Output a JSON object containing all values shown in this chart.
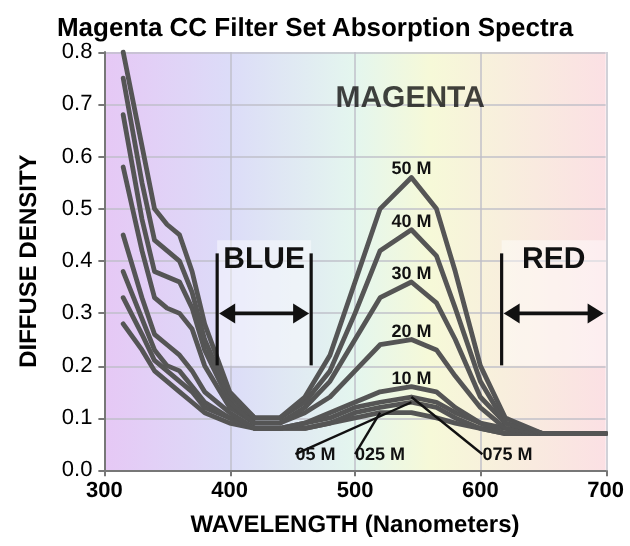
{
  "chart_data": {
    "type": "line",
    "title": "Magenta CC Filter Set Absorption Spectra",
    "xlabel": "WAVELENGTH (Nanometers)",
    "ylabel": "DIFFUSE DENSITY",
    "x": [
      315,
      330,
      340,
      350,
      360,
      370,
      380,
      400,
      420,
      440,
      460,
      480,
      500,
      520,
      545,
      565,
      580,
      600,
      620,
      650,
      700
    ],
    "series": [
      {
        "name": "50 M",
        "color": "#555555",
        "values": [
          0.8,
          0.62,
          0.5,
          0.47,
          0.45,
          0.38,
          0.28,
          0.15,
          0.1,
          0.1,
          0.14,
          0.22,
          0.36,
          0.5,
          0.56,
          0.5,
          0.38,
          0.2,
          0.1,
          0.07,
          0.07
        ]
      },
      {
        "name": "40 M",
        "color": "#555555",
        "values": [
          0.75,
          0.55,
          0.44,
          0.42,
          0.4,
          0.34,
          0.25,
          0.14,
          0.1,
          0.1,
          0.13,
          0.19,
          0.3,
          0.42,
          0.46,
          0.41,
          0.31,
          0.17,
          0.09,
          0.07,
          0.07
        ]
      },
      {
        "name": "30 M",
        "color": "#555555",
        "values": [
          0.68,
          0.48,
          0.38,
          0.37,
          0.36,
          0.31,
          0.23,
          0.13,
          0.09,
          0.09,
          0.12,
          0.17,
          0.25,
          0.33,
          0.36,
          0.32,
          0.25,
          0.14,
          0.09,
          0.07,
          0.07
        ]
      },
      {
        "name": "20 M",
        "color": "#555555",
        "values": [
          0.58,
          0.42,
          0.33,
          0.31,
          0.3,
          0.27,
          0.2,
          0.12,
          0.09,
          0.09,
          0.11,
          0.14,
          0.19,
          0.24,
          0.25,
          0.23,
          0.18,
          0.12,
          0.08,
          0.07,
          0.07
        ]
      },
      {
        "name": "10 M",
        "color": "#555555",
        "values": [
          0.45,
          0.33,
          0.26,
          0.24,
          0.22,
          0.19,
          0.15,
          0.11,
          0.08,
          0.08,
          0.09,
          0.11,
          0.13,
          0.15,
          0.16,
          0.15,
          0.12,
          0.09,
          0.08,
          0.07,
          0.07
        ]
      },
      {
        "name": "075 M",
        "color": "#555555",
        "values": [
          0.38,
          0.29,
          0.23,
          0.2,
          0.19,
          0.16,
          0.13,
          0.1,
          0.08,
          0.08,
          0.09,
          0.1,
          0.12,
          0.13,
          0.14,
          0.13,
          0.11,
          0.09,
          0.07,
          0.07,
          0.07
        ]
      },
      {
        "name": "05 M",
        "color": "#555555",
        "values": [
          0.33,
          0.26,
          0.21,
          0.19,
          0.17,
          0.15,
          0.12,
          0.1,
          0.08,
          0.08,
          0.08,
          0.09,
          0.11,
          0.12,
          0.13,
          0.12,
          0.1,
          0.08,
          0.07,
          0.07,
          0.07
        ]
      },
      {
        "name": "025 M",
        "color": "#555555",
        "values": [
          0.28,
          0.23,
          0.19,
          0.17,
          0.15,
          0.13,
          0.11,
          0.09,
          0.08,
          0.08,
          0.08,
          0.09,
          0.1,
          0.11,
          0.11,
          0.1,
          0.09,
          0.08,
          0.07,
          0.07,
          0.07
        ]
      }
    ],
    "annotations": [
      "MAGENTA"
    ],
    "bands": [
      {
        "axis": "x",
        "from": 390,
        "to": 465,
        "label": "BLUE"
      },
      {
        "axis": "x",
        "from": 617,
        "to": 700,
        "label": "RED"
      }
    ],
    "xlim": [
      300,
      700
    ],
    "xticks": [
      300,
      400,
      500,
      600,
      700
    ],
    "ylim": [
      0,
      0.8
    ],
    "yticks": [
      {
        "value": 0,
        "label": "0.0"
      },
      0.1,
      0.2,
      0.3,
      0.4,
      0.5,
      0.6,
      0.7,
      0.8
    ],
    "grid": true,
    "legend": false
  }
}
